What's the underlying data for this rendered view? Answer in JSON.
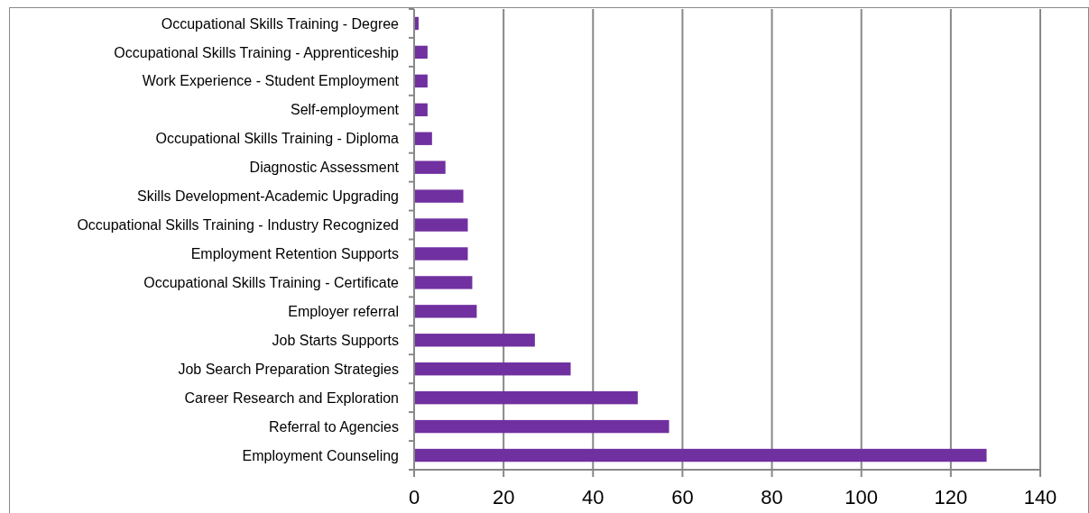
{
  "chart_data": {
    "type": "bar",
    "orientation": "horizontal",
    "categories": [
      "Occupational Skills Training - Degree",
      "Occupational Skills Training - Apprenticeship",
      "Work Experience - Student Employment",
      "Self-employment",
      "Occupational Skills Training - Diploma",
      "Diagnostic Assessment",
      "Skills Development-Academic Upgrading",
      "Occupational Skills Training - Industry Recognized",
      "Employment Retention Supports",
      "Occupational Skills Training - Certificate",
      "Employer referral",
      "Job Starts Supports",
      "Job Search Preparation Strategies",
      "Career Research and Exploration",
      "Referral to Agencies",
      "Employment Counseling"
    ],
    "values": [
      1,
      3,
      3,
      3,
      4,
      7,
      11,
      12,
      12,
      13,
      14,
      27,
      35,
      50,
      57,
      128
    ],
    "color": "#7030a0",
    "xlim": [
      0,
      140
    ],
    "xticks": [
      0,
      20,
      40,
      60,
      80,
      100,
      120,
      140
    ],
    "grid": "x"
  }
}
